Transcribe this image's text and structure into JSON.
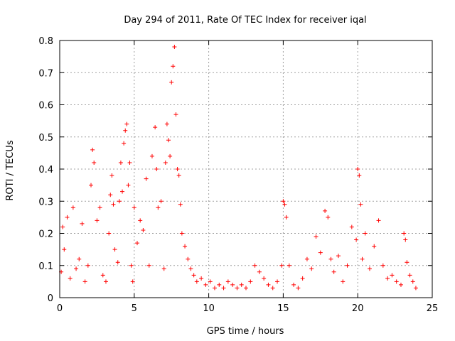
{
  "chart_data": {
    "type": "scatter",
    "title": "Day 294 of 2011, Rate Of TEC Index for receiver iqal",
    "xlabel": "GPS time / hours",
    "ylabel": "ROTI / TECUs",
    "xlim": [
      0,
      25
    ],
    "ylim": [
      0,
      0.8
    ],
    "xticks": [
      "0",
      "5",
      "10",
      "15",
      "20",
      "25"
    ],
    "yticks": [
      "0",
      "0.1",
      "0.2",
      "0.3",
      "0.4",
      "0.5",
      "0.6",
      "0.7",
      "0.8"
    ],
    "grid": true,
    "marker": "+",
    "marker_color": "#ff0000",
    "series": [
      {
        "x": [
          0.1,
          0.2,
          0.3,
          0.5,
          0.7,
          0.9,
          1.1,
          1.3,
          1.5,
          1.7,
          1.9,
          2.1,
          2.2,
          2.3,
          2.5,
          2.7,
          2.9,
          3.1,
          3.3,
          3.4,
          3.5,
          3.6,
          3.7,
          3.9,
          4.0,
          4.1,
          4.2,
          4.3,
          4.4,
          4.5,
          4.6,
          4.7,
          4.8,
          4.9,
          5.0,
          5.2,
          5.4,
          5.6,
          5.8,
          6.0,
          6.2,
          6.4,
          6.5,
          6.6,
          6.8,
          7.0,
          7.1,
          7.2,
          7.3,
          7.4,
          7.5,
          7.6,
          7.7,
          7.8,
          7.9,
          8.0,
          8.1,
          8.2,
          8.4,
          8.6,
          8.8,
          9.0,
          9.2,
          9.5,
          9.8,
          10.1,
          10.4,
          10.7,
          11.0,
          11.3,
          11.6,
          11.9,
          12.2,
          12.5,
          12.8,
          13.1,
          13.4,
          13.7,
          14.0,
          14.3,
          14.6,
          14.9,
          15.0,
          15.1,
          15.2,
          15.4,
          15.7,
          16.0,
          16.3,
          16.6,
          16.9,
          17.2,
          17.5,
          17.8,
          18.0,
          18.2,
          18.4,
          18.7,
          19.0,
          19.3,
          19.6,
          19.9,
          20.0,
          20.1,
          20.2,
          20.3,
          20.5,
          20.8,
          21.1,
          21.4,
          21.7,
          22.0,
          22.3,
          22.6,
          22.9,
          23.1,
          23.2,
          23.3,
          23.5,
          23.7,
          23.9
        ],
        "y": [
          0.08,
          0.22,
          0.15,
          0.25,
          0.06,
          0.28,
          0.09,
          0.12,
          0.23,
          0.05,
          0.1,
          0.35,
          0.46,
          0.42,
          0.24,
          0.28,
          0.07,
          0.05,
          0.2,
          0.32,
          0.38,
          0.29,
          0.15,
          0.11,
          0.3,
          0.42,
          0.33,
          0.48,
          0.52,
          0.54,
          0.35,
          0.42,
          0.1,
          0.05,
          0.28,
          0.17,
          0.24,
          0.21,
          0.37,
          0.1,
          0.44,
          0.53,
          0.4,
          0.28,
          0.3,
          0.09,
          0.42,
          0.54,
          0.49,
          0.44,
          0.67,
          0.72,
          0.78,
          0.57,
          0.4,
          0.38,
          0.29,
          0.2,
          0.16,
          0.12,
          0.09,
          0.07,
          0.05,
          0.06,
          0.04,
          0.05,
          0.03,
          0.04,
          0.03,
          0.05,
          0.04,
          0.03,
          0.04,
          0.03,
          0.05,
          0.1,
          0.08,
          0.06,
          0.04,
          0.03,
          0.05,
          0.1,
          0.3,
          0.29,
          0.25,
          0.1,
          0.04,
          0.03,
          0.06,
          0.12,
          0.09,
          0.19,
          0.14,
          0.27,
          0.25,
          0.12,
          0.08,
          0.13,
          0.05,
          0.1,
          0.22,
          0.18,
          0.4,
          0.38,
          0.29,
          0.12,
          0.2,
          0.09,
          0.16,
          0.24,
          0.1,
          0.06,
          0.07,
          0.05,
          0.04,
          0.2,
          0.18,
          0.11,
          0.07,
          0.05,
          0.03
        ]
      }
    ]
  }
}
